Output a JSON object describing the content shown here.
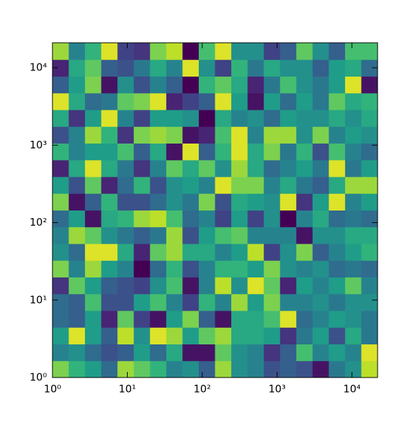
{
  "chart_data": {
    "type": "heatmap",
    "colormap": "viridis",
    "xscale": "log",
    "yscale": "log",
    "xlim": [
      1,
      22000
    ],
    "ylim": [
      1,
      21000
    ],
    "xticks": [
      {
        "value": 1,
        "label": "10⁰"
      },
      {
        "value": 10,
        "label": "10¹"
      },
      {
        "value": 100,
        "label": "10²"
      },
      {
        "value": 1000,
        "label": "10³"
      },
      {
        "value": 10000,
        "label": "10⁴"
      }
    ],
    "yticks": [
      {
        "value": 1,
        "label": "10⁰"
      },
      {
        "value": 10,
        "label": "10¹"
      },
      {
        "value": 100,
        "label": "10²"
      },
      {
        "value": 1000,
        "label": "10³"
      },
      {
        "value": 10000,
        "label": "10⁴"
      }
    ],
    "z": [
      [
        0.8,
        0.65,
        0.55,
        0.35,
        0.85,
        0.75,
        0.65,
        0.45,
        0.5,
        0.3,
        0.85,
        0.5,
        0.45,
        0.25,
        0.3,
        0.25,
        0.05,
        0.4,
        0.5,
        0.9
      ],
      [
        0.45,
        0.5,
        0.35,
        0.25,
        0.3,
        0.55,
        0.35,
        0.6,
        0.05,
        0.05,
        0.75,
        0.5,
        0.45,
        0.15,
        0.3,
        0.7,
        0.45,
        0.55,
        0.45,
        0.95
      ],
      [
        0.55,
        0.95,
        0.55,
        0.3,
        0.9,
        0.5,
        0.95,
        0.85,
        0.55,
        0.75,
        0.85,
        0.6,
        0.6,
        0.55,
        0.15,
        0.4,
        0.55,
        0.25,
        0.6,
        0.4
      ],
      [
        0.35,
        0.3,
        0.55,
        0.1,
        0.75,
        0.2,
        0.05,
        0.55,
        0.8,
        0.3,
        0.05,
        0.6,
        0.6,
        0.7,
        0.95,
        0.35,
        0.45,
        0.55,
        0.5,
        0.4
      ],
      [
        0.35,
        0.3,
        0.7,
        0.25,
        0.25,
        0.55,
        0.7,
        0.45,
        0.2,
        0.65,
        0.45,
        0.85,
        0.55,
        0.8,
        0.45,
        0.45,
        0.5,
        0.4,
        0.5,
        0.5
      ],
      [
        0.15,
        0.75,
        0.55,
        0.3,
        0.25,
        0.2,
        0.5,
        0.7,
        0.05,
        0.45,
        0.9,
        0.5,
        0.95,
        0.75,
        0.1,
        0.55,
        0.45,
        0.55,
        0.75,
        0.45
      ],
      [
        0.8,
        0.45,
        0.85,
        0.55,
        0.45,
        0,
        0.35,
        0.65,
        0.25,
        0.45,
        0.65,
        0.65,
        0.55,
        0.8,
        0.5,
        0.45,
        0.5,
        0.35,
        0.4,
        0.35
      ],
      [
        0.5,
        0.35,
        0.95,
        0.95,
        0.6,
        0.1,
        0.75,
        0.85,
        0.6,
        0.6,
        0.45,
        0.55,
        0.9,
        0.2,
        0.5,
        0.8,
        0.3,
        0.45,
        0.55,
        0.65
      ],
      [
        0.45,
        0.85,
        0.75,
        0.5,
        0.4,
        0.3,
        0.4,
        0.85,
        0.25,
        0.55,
        0.7,
        0.75,
        0.45,
        0.45,
        0.45,
        0.05,
        0.5,
        0.5,
        0.6,
        0.6
      ],
      [
        0.35,
        0.55,
        0.05,
        0.6,
        0.65,
        0.85,
        0.9,
        0.7,
        0.35,
        0.45,
        0.2,
        0.55,
        0.2,
        0.5,
        0,
        0.45,
        0.6,
        0.35,
        0.4,
        0.35
      ],
      [
        0.8,
        0.05,
        0.3,
        0.65,
        0.25,
        0.25,
        0.35,
        0.5,
        0.4,
        0.8,
        0.25,
        0.6,
        0.55,
        0.5,
        0.95,
        0.15,
        0.55,
        0.95,
        0.45,
        0.55
      ],
      [
        0.55,
        0.25,
        0.75,
        0.1,
        0.35,
        0.65,
        0.25,
        0.5,
        0.55,
        0.45,
        0.95,
        0.8,
        0.8,
        0.45,
        0.6,
        0.4,
        0.3,
        0.6,
        0.85,
        0.85
      ],
      [
        0.1,
        0.6,
        0.95,
        0.6,
        0.4,
        0.15,
        0.45,
        0.75,
        0.6,
        0.75,
        0.5,
        0.85,
        0.6,
        0.35,
        0.45,
        0.55,
        0.4,
        0.95,
        0.4,
        0.55
      ],
      [
        0.65,
        0.45,
        0.55,
        0.55,
        0.7,
        0.3,
        0.6,
        0.05,
        0.95,
        0.3,
        0.65,
        0.95,
        0.6,
        0.8,
        0.4,
        0.65,
        0.25,
        0.7,
        0.45,
        0.35
      ],
      [
        0.25,
        0.45,
        0.85,
        0.65,
        0.15,
        0.8,
        0.85,
        0.8,
        0.05,
        0.1,
        0.7,
        0.95,
        0.45,
        0.85,
        0.85,
        0.5,
        0.8,
        0.45,
        0.55,
        0.5
      ],
      [
        0.6,
        0.15,
        0.55,
        0.95,
        0.45,
        0.2,
        0.55,
        0.55,
        0.5,
        0,
        0.6,
        0.45,
        0.5,
        0.35,
        0.55,
        0.5,
        0.5,
        0.6,
        0.5,
        0.6
      ],
      [
        0.95,
        0.6,
        0.35,
        0.4,
        0.75,
        0.8,
        0.95,
        0.1,
        0.2,
        0.3,
        0.95,
        0.55,
        0.05,
        0.55,
        0.35,
        0.55,
        0.4,
        0.75,
        0.6,
        0.65
      ],
      [
        0.3,
        0.55,
        0.8,
        0.05,
        0.5,
        0.25,
        0.45,
        0.3,
        0,
        0.65,
        0.75,
        0.6,
        0.1,
        0.4,
        0.7,
        0.5,
        0.4,
        0.55,
        0.95,
        0.05
      ],
      [
        0.1,
        0.6,
        0.75,
        0.3,
        0.25,
        0.4,
        0.6,
        0.45,
        0.95,
        0.5,
        0.2,
        0.65,
        0.4,
        0.6,
        0.5,
        0.5,
        0.3,
        0.55,
        0.6,
        0.35
      ],
      [
        0.85,
        0.45,
        0.65,
        0.95,
        0.2,
        0.15,
        0.8,
        0.9,
        0,
        0.7,
        0.95,
        0.5,
        0.5,
        0.2,
        0.3,
        0.75,
        0.5,
        0.3,
        0.7,
        0.7
      ]
    ]
  }
}
